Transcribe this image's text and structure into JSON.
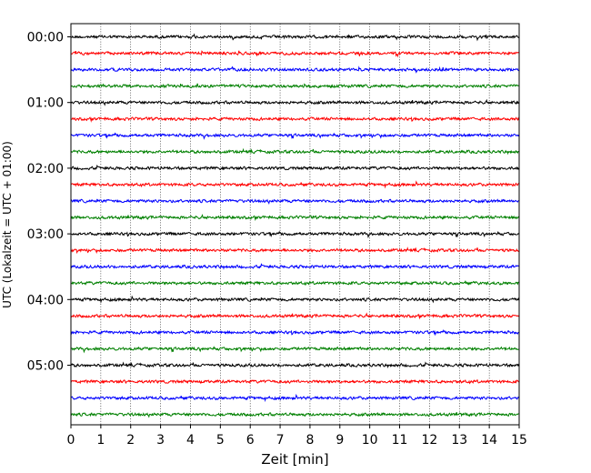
{
  "chart_data": {
    "type": "line",
    "title": "",
    "xlabel": "Zeit  [min]",
    "ylabel": "UTC (Lokalzeit = UTC + 01:00)",
    "xlim": [
      0,
      15
    ],
    "x_ticks": [
      0,
      1,
      2,
      3,
      4,
      5,
      6,
      7,
      8,
      9,
      10,
      11,
      12,
      13,
      14,
      15
    ],
    "y_tick_labels": [
      "00:00",
      "01:00",
      "02:00",
      "03:00",
      "04:00",
      "05:00"
    ],
    "trace_interval_minutes": 15,
    "trace_count": 24,
    "first_trace_time": "00:00",
    "last_trace_time": "05:45",
    "grid": "vertical dotted lines at each minute",
    "trace_colors_cycle": [
      "#000000",
      "#ff0000",
      "#0000ff",
      "#008000"
    ],
    "legend": "none"
  }
}
